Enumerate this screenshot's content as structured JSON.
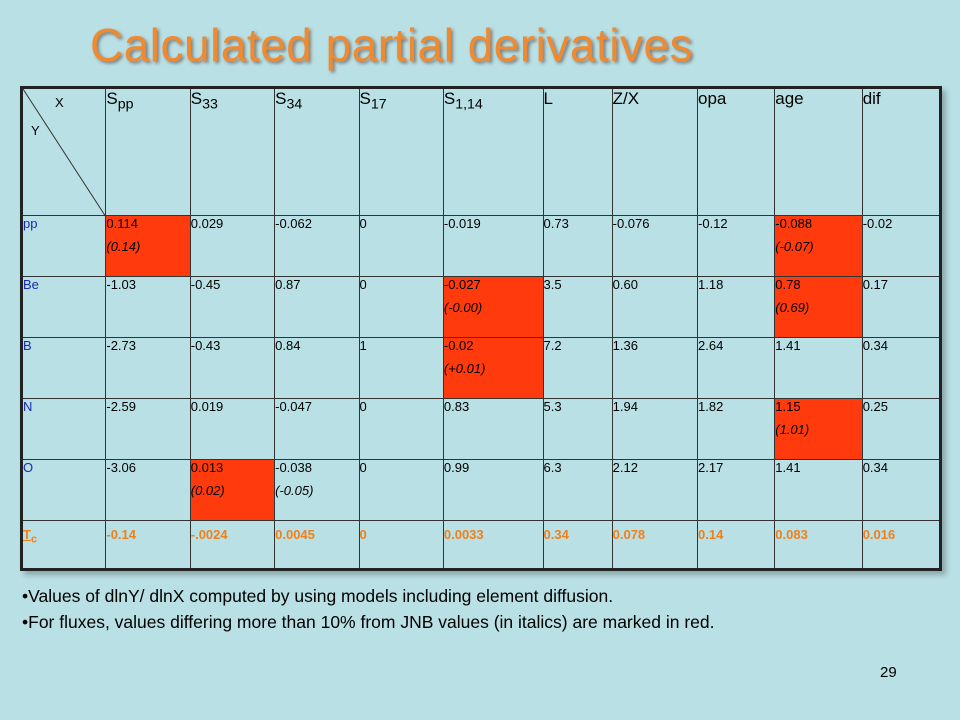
{
  "title": "Calculated partial derivatives",
  "corner": {
    "x": "X",
    "y": "Y"
  },
  "columns": [
    {
      "base": "S",
      "sub": "pp"
    },
    {
      "base": "S",
      "sub": "33"
    },
    {
      "base": "S",
      "sub": "34"
    },
    {
      "base": "S",
      "sub": "17"
    },
    {
      "base": "S",
      "sub": "1,14"
    },
    {
      "base": "L",
      "sub": ""
    },
    {
      "base": "Z/X",
      "sub": ""
    },
    {
      "base": "opa",
      "sub": ""
    },
    {
      "base": "age",
      "sub": ""
    },
    {
      "base": "dif",
      "sub": ""
    }
  ],
  "rows": [
    {
      "label": "pp",
      "cells": [
        {
          "v": "0.114",
          "jnb": "(0.14)",
          "red": true
        },
        {
          "v": "0.029"
        },
        {
          "v": "-0.062"
        },
        {
          "v": "0"
        },
        {
          "v": "-0.019"
        },
        {
          "v": "0.73"
        },
        {
          "v": "-0.076"
        },
        {
          "v": "-0.12"
        },
        {
          "v": "-0.088",
          "jnb": "(-0.07)",
          "red": true
        },
        {
          "v": "-0.02"
        }
      ]
    },
    {
      "label": "Be",
      "cells": [
        {
          "v": "-1.03"
        },
        {
          "v": "-0.45"
        },
        {
          "v": "0.87"
        },
        {
          "v": "0"
        },
        {
          "v": "-0.027",
          "jnb": "(-0.00)",
          "red": true
        },
        {
          "v": "3.5"
        },
        {
          "v": "0.60"
        },
        {
          "v": "1.18"
        },
        {
          "v": "0.78",
          "jnb": "(0.69)",
          "red": true
        },
        {
          "v": "0.17"
        }
      ]
    },
    {
      "label": "B",
      "cells": [
        {
          "v": "-2.73"
        },
        {
          "v": "-0.43"
        },
        {
          "v": "0.84"
        },
        {
          "v": "1"
        },
        {
          "v": "-0.02",
          "jnb": "(+0.01)",
          "red": true
        },
        {
          "v": "7.2"
        },
        {
          "v": "1.36"
        },
        {
          "v": "2.64"
        },
        {
          "v": "1.41"
        },
        {
          "v": "0.34"
        }
      ]
    },
    {
      "label": "N",
      "cells": [
        {
          "v": "-2.59"
        },
        {
          "v": "0.019"
        },
        {
          "v": "-0.047"
        },
        {
          "v": "0"
        },
        {
          "v": "0.83"
        },
        {
          "v": "5.3"
        },
        {
          "v": "1.94"
        },
        {
          "v": "1.82"
        },
        {
          "v": "1.15",
          "jnb": "(1.01)",
          "red": true
        },
        {
          "v": "0.25"
        }
      ]
    },
    {
      "label": "O",
      "cells": [
        {
          "v": "-3.06"
        },
        {
          "v": "0.013",
          "jnb": "(0.02)",
          "red": true
        },
        {
          "v": "-0.038",
          "jnb": "(-0.05)"
        },
        {
          "v": "0"
        },
        {
          "v": "0.99"
        },
        {
          "v": "6.3"
        },
        {
          "v": "2.12"
        },
        {
          "v": "2.17"
        },
        {
          "v": "1.41"
        },
        {
          "v": "0.34"
        }
      ]
    }
  ],
  "tc_row": {
    "label_base": "T",
    "label_sub": "c",
    "cells": [
      "-0.14",
      "-.0024",
      "0.0045",
      "0",
      "0.0033",
      "0.34",
      "0.078",
      "0.14",
      "0.083",
      "0.016"
    ]
  },
  "notes": [
    "•Values of   dlnY/ dlnX  computed  by using models including element diffusion.",
    "•For fluxes, values differing more than 10% from JNB values (in italics) are marked in red."
  ],
  "page_number": "29",
  "colors": {
    "title": "#ef8a30",
    "highlight": "#ff3a0c",
    "background": "#b9e0e4",
    "row_label": "#1a2ab0",
    "tc_row": "#f0801c"
  }
}
